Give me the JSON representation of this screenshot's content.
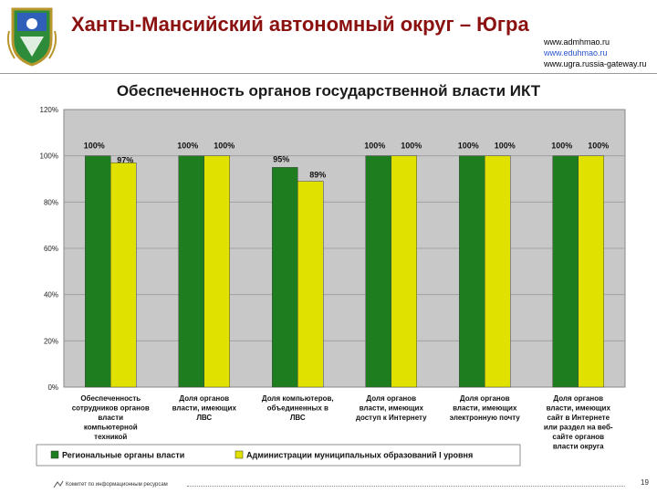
{
  "header": {
    "title": "Ханты-Мансийский автономный округ – Югра",
    "urls": [
      "www.admhmao.ru",
      "www.eduhmao.ru",
      "www.ugra.russia-gateway.ru"
    ]
  },
  "colors": {
    "title": "#8b1111",
    "series_regional": "#1e7d1e",
    "series_municipal": "#e1e100",
    "plot_background": "#c8c8c8",
    "link": "#2a55cc"
  },
  "chart_data": {
    "type": "bar",
    "title": "Обеспеченность органов государственной власти ИКТ",
    "categories": [
      [
        "Обеспеченность",
        "сотрудников органов",
        "власти",
        "компьютерной",
        "техникой"
      ],
      [
        "Доля органов",
        "власти, имеющих",
        "ЛВС"
      ],
      [
        "Доля компьютеров,",
        "объединенных в",
        "ЛВС"
      ],
      [
        "Доля органов",
        "власти, имеющих",
        "доступ к Интернету"
      ],
      [
        "Доля органов",
        "власти, имеющих",
        "электронную почту"
      ],
      [
        "Доля органов",
        "власти, имеющих",
        "сайт в Интернете",
        "или раздел на веб-",
        "сайте органов",
        "власти округа"
      ]
    ],
    "series": [
      {
        "name": "Региональные органы власти",
        "values": [
          100,
          100,
          95,
          100,
          100,
          100
        ],
        "labels": [
          "100%",
          "100%",
          "95%",
          "100%",
          "100%",
          "100%"
        ]
      },
      {
        "name": "Администрации муниципальных образований I уровня",
        "values": [
          97,
          100,
          89,
          100,
          100,
          100
        ],
        "labels": [
          "97%",
          "100%",
          "89%",
          "100%",
          "100%",
          "100%"
        ]
      }
    ],
    "y_ticks": [
      "0%",
      "20%",
      "40%",
      "60%",
      "80%",
      "100%",
      "120%"
    ],
    "ylim": [
      0,
      120
    ],
    "legend_position": "bottom"
  },
  "footer": {
    "org": "Комитет по информационным ресурсам",
    "page": "19"
  }
}
